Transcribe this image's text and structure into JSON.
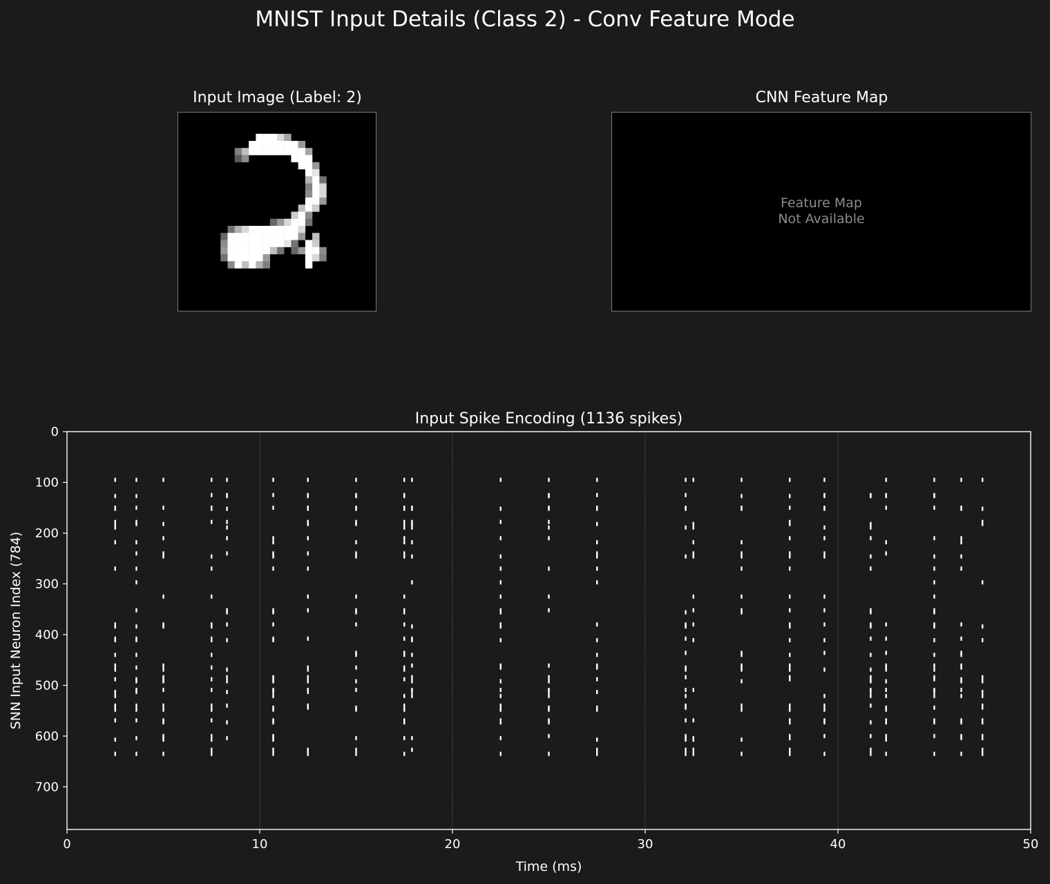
{
  "figure": {
    "title": "MNIST Input Details (Class 2) - Conv Feature Mode",
    "background": "#1b1b1b"
  },
  "input_image": {
    "title": "Input Image (Label: 2)",
    "size": 28,
    "pixels": [
      {
        "r": 3,
        "c": [
          [
            11,
            1
          ],
          [
            12,
            1
          ],
          [
            13,
            1
          ],
          [
            14,
            0.85
          ],
          [
            15,
            0.65
          ]
        ]
      },
      {
        "r": 4,
        "c": [
          [
            10,
            1
          ],
          [
            11,
            1
          ],
          [
            12,
            1
          ],
          [
            13,
            1
          ],
          [
            14,
            1
          ],
          [
            15,
            1
          ],
          [
            16,
            1
          ],
          [
            17,
            0.6
          ]
        ]
      },
      {
        "r": 5,
        "c": [
          [
            8,
            0.5
          ],
          [
            9,
            0.75
          ],
          [
            10,
            1
          ],
          [
            11,
            1
          ],
          [
            12,
            1
          ],
          [
            13,
            1
          ],
          [
            14,
            1
          ],
          [
            15,
            1
          ],
          [
            16,
            1
          ],
          [
            17,
            1
          ],
          [
            18,
            0.65
          ]
        ]
      },
      {
        "r": 6,
        "c": [
          [
            8,
            0.35
          ],
          [
            9,
            0.55
          ],
          [
            16,
            1
          ],
          [
            17,
            1
          ],
          [
            18,
            1
          ]
        ]
      },
      {
        "r": 7,
        "c": [
          [
            17,
            1
          ],
          [
            18,
            1
          ],
          [
            19,
            0.6
          ]
        ]
      },
      {
        "r": 8,
        "c": [
          [
            18,
            1
          ],
          [
            19,
            0.9
          ]
        ]
      },
      {
        "r": 9,
        "c": [
          [
            18,
            0.7
          ],
          [
            19,
            1
          ],
          [
            20,
            0.45
          ]
        ]
      },
      {
        "r": 10,
        "c": [
          [
            18,
            0.5
          ],
          [
            19,
            1
          ],
          [
            20,
            0.85
          ]
        ]
      },
      {
        "r": 11,
        "c": [
          [
            18,
            0.55
          ],
          [
            19,
            1
          ],
          [
            20,
            0.85
          ]
        ]
      },
      {
        "r": 12,
        "c": [
          [
            18,
            1
          ],
          [
            19,
            1
          ],
          [
            20,
            0.6
          ]
        ]
      },
      {
        "r": 13,
        "c": [
          [
            17,
            0.75
          ],
          [
            18,
            1
          ],
          [
            19,
            0.8
          ]
        ]
      },
      {
        "r": 14,
        "c": [
          [
            16,
            0.8
          ],
          [
            17,
            1
          ],
          [
            18,
            0.55
          ]
        ]
      },
      {
        "r": 15,
        "c": [
          [
            13,
            0.4
          ],
          [
            14,
            0.6
          ],
          [
            15,
            0.85
          ],
          [
            16,
            1
          ],
          [
            17,
            1
          ],
          [
            18,
            0.45
          ]
        ]
      },
      {
        "r": 16,
        "c": [
          [
            7,
            0.45
          ],
          [
            8,
            0.7
          ],
          [
            9,
            0.85
          ],
          [
            10,
            1
          ],
          [
            11,
            1
          ],
          [
            12,
            1
          ],
          [
            13,
            1
          ],
          [
            14,
            1
          ],
          [
            15,
            1
          ],
          [
            16,
            1
          ],
          [
            17,
            0.85
          ]
        ]
      },
      {
        "r": 17,
        "c": [
          [
            6,
            0.4
          ],
          [
            7,
            1
          ],
          [
            8,
            1
          ],
          [
            9,
            1
          ],
          [
            10,
            1
          ],
          [
            11,
            1
          ],
          [
            12,
            1
          ],
          [
            13,
            1
          ],
          [
            14,
            1
          ],
          [
            15,
            1
          ],
          [
            16,
            1
          ],
          [
            17,
            0.6
          ],
          [
            19,
            0.75
          ]
        ]
      },
      {
        "r": 18,
        "c": [
          [
            6,
            0.55
          ],
          [
            7,
            1
          ],
          [
            8,
            1
          ],
          [
            9,
            1
          ],
          [
            10,
            1
          ],
          [
            11,
            1
          ],
          [
            12,
            1
          ],
          [
            13,
            1
          ],
          [
            14,
            1
          ],
          [
            15,
            0.9
          ],
          [
            16,
            0.45
          ],
          [
            18,
            1
          ],
          [
            19,
            0.8
          ]
        ]
      },
      {
        "r": 19,
        "c": [
          [
            6,
            0.6
          ],
          [
            7,
            1
          ],
          [
            8,
            1
          ],
          [
            9,
            1
          ],
          [
            10,
            1
          ],
          [
            11,
            1
          ],
          [
            12,
            1
          ],
          [
            13,
            0.75
          ],
          [
            14,
            0.45
          ],
          [
            16,
            0.4
          ],
          [
            17,
            0.6
          ],
          [
            18,
            1
          ],
          [
            19,
            1
          ],
          [
            20,
            0.55
          ]
        ]
      },
      {
        "r": 20,
        "c": [
          [
            6,
            0.45
          ],
          [
            7,
            1
          ],
          [
            8,
            1
          ],
          [
            9,
            1
          ],
          [
            10,
            1
          ],
          [
            11,
            1
          ],
          [
            12,
            0.6
          ],
          [
            18,
            1
          ],
          [
            19,
            0.85
          ],
          [
            20,
            0.5
          ]
        ]
      },
      {
        "r": 21,
        "c": [
          [
            7,
            0.55
          ],
          [
            8,
            1
          ],
          [
            9,
            0.75
          ],
          [
            10,
            1
          ],
          [
            11,
            0.7
          ],
          [
            12,
            0.5
          ],
          [
            18,
            1
          ]
        ]
      }
    ]
  },
  "feature_map": {
    "title": "CNN Feature Map",
    "message_line1": "Feature Map",
    "message_line2": "Not Available"
  },
  "chart_data": {
    "type": "scatter",
    "title": "Input Spike Encoding (1136 spikes)",
    "xlabel": "Time (ms)",
    "ylabel": "SNN Input Neuron Index (784)",
    "xlim": [
      0,
      50
    ],
    "ylim": [
      784,
      0
    ],
    "y_inverted": true,
    "xticks": [
      "0",
      "10",
      "20",
      "30",
      "40",
      "50"
    ],
    "yticks": [
      "0",
      "100",
      "200",
      "300",
      "400",
      "500",
      "600",
      "700"
    ],
    "grid": "vertical dotted",
    "marker": "vertical line",
    "color": "#ffffff",
    "spike_times_ms": [
      2.5,
      3.6,
      5.0,
      7.5,
      8.3,
      10.7,
      12.5,
      15.0,
      17.5,
      17.9,
      22.5,
      25.0,
      27.5,
      32.1,
      32.5,
      35.0,
      37.5,
      39.3,
      41.7,
      42.5,
      45.0,
      46.4,
      47.5
    ],
    "neuron_indices_approx": [
      95,
      125,
      127,
      150,
      152,
      178,
      182,
      189,
      210,
      218,
      240,
      246,
      270,
      297,
      325,
      352,
      356,
      380,
      384,
      408,
      411,
      436,
      440,
      461,
      465,
      469,
      484,
      488,
      492,
      509,
      513,
      521,
      540,
      544,
      548,
      569,
      573,
      600,
      604,
      607,
      627,
      635
    ]
  }
}
